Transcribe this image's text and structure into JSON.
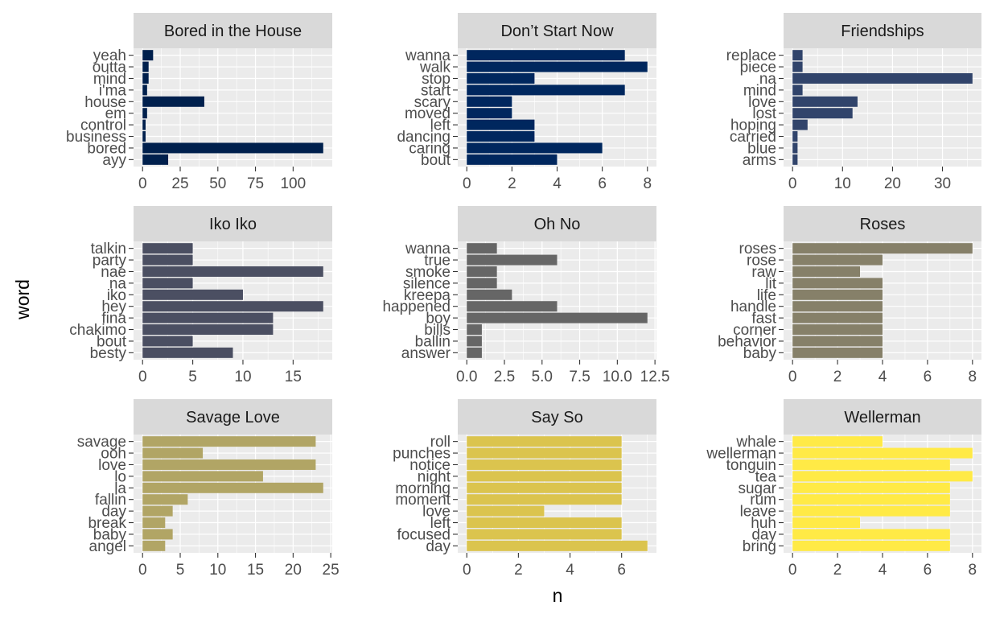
{
  "figure": {
    "xlabel": "n",
    "ylabel": "word",
    "panel_background": "#ebebeb",
    "strip_background": "#d9d9d9",
    "grid_color": "#ffffff"
  },
  "chart_data": [
    {
      "type": "bar",
      "orientation": "horizontal",
      "title": "Bored in the House",
      "color": "#00204d",
      "categories": [
        "ayy",
        "bored",
        "business",
        "control",
        "em",
        "house",
        "i'ma",
        "mind",
        "outta",
        "yeah"
      ],
      "values": [
        17,
        120,
        2,
        2,
        3,
        41,
        3,
        4,
        4,
        7
      ],
      "xlim": [
        0,
        120
      ],
      "xticks": [
        0,
        25,
        50,
        75,
        100
      ]
    },
    {
      "type": "bar",
      "orientation": "horizontal",
      "title": "Don’t Start Now",
      "color": "#00275e",
      "categories": [
        "bout",
        "caring",
        "dancing",
        "left",
        "moved",
        "scary",
        "start",
        "stop",
        "walk",
        "wanna"
      ],
      "values": [
        4,
        6,
        3,
        3,
        2,
        2,
        7,
        3,
        8,
        7
      ],
      "xlim": [
        0,
        8
      ],
      "xticks": [
        0,
        2,
        4,
        6,
        8
      ]
    },
    {
      "type": "bar",
      "orientation": "horizontal",
      "title": "Friendships",
      "color": "#31446b",
      "categories": [
        "arms",
        "blue",
        "carried",
        "hoping",
        "lost",
        "love",
        "mind",
        "na",
        "piece",
        "replace"
      ],
      "values": [
        1,
        1,
        1,
        3,
        12,
        13,
        2,
        36,
        2,
        2
      ],
      "xlim": [
        0,
        36
      ],
      "xticks": [
        0,
        10,
        20,
        30
      ]
    },
    {
      "type": "bar",
      "orientation": "horizontal",
      "title": "Iko Iko",
      "color": "#4b4f62",
      "categories": [
        "besty",
        "bout",
        "chakimo",
        "fina",
        "hey",
        "iko",
        "na",
        "nae",
        "party",
        "talkin"
      ],
      "values": [
        9,
        5,
        13,
        13,
        18,
        10,
        5,
        18,
        5,
        5
      ],
      "xlim": [
        0,
        18
      ],
      "xticks": [
        0,
        5,
        10,
        15
      ]
    },
    {
      "type": "bar",
      "orientation": "horizontal",
      "title": "Oh No",
      "color": "#666666",
      "categories": [
        "answer",
        "ballin",
        "bills",
        "boy",
        "happened",
        "kreepa",
        "silence",
        "smoke",
        "true",
        "wanna"
      ],
      "values": [
        1,
        1,
        1,
        12,
        6,
        3,
        2,
        2,
        6,
        2
      ],
      "xlim": [
        0,
        12
      ],
      "xticks": [
        0,
        2.5,
        5,
        7.5,
        10,
        12.5
      ],
      "xtick_labels": [
        "0.0",
        "2.5",
        "5.0",
        "7.5",
        "10.0",
        "12.5"
      ]
    },
    {
      "type": "bar",
      "orientation": "horizontal",
      "title": "Roses",
      "color": "#868069",
      "categories": [
        "baby",
        "behavior",
        "corner",
        "fast",
        "handle",
        "life",
        "lit",
        "raw",
        "rose",
        "roses"
      ],
      "values": [
        4,
        4,
        4,
        4,
        4,
        4,
        4,
        3,
        4,
        8
      ],
      "xlim": [
        0,
        8
      ],
      "xticks": [
        0,
        2,
        4,
        6,
        8
      ]
    },
    {
      "type": "bar",
      "orientation": "horizontal",
      "title": "Savage Love",
      "color": "#b1a565",
      "categories": [
        "angel",
        "baby",
        "break",
        "day",
        "fallin",
        "la",
        "lo",
        "love",
        "ooh",
        "savage"
      ],
      "values": [
        3,
        4,
        3,
        4,
        6,
        24,
        16,
        23,
        8,
        23
      ],
      "xlim": [
        0,
        24
      ],
      "xticks": [
        0,
        5,
        10,
        15,
        20,
        25
      ]
    },
    {
      "type": "bar",
      "orientation": "horizontal",
      "title": "Say So",
      "color": "#dbc44e",
      "categories": [
        "day",
        "focused",
        "left",
        "love",
        "moment",
        "morning",
        "night",
        "notice",
        "punches",
        "roll"
      ],
      "values": [
        7,
        6,
        6,
        3,
        6,
        6,
        6,
        6,
        6,
        6
      ],
      "xlim": [
        0,
        7
      ],
      "xticks": [
        0,
        2,
        4,
        6
      ]
    },
    {
      "type": "bar",
      "orientation": "horizontal",
      "title": "Wellerman",
      "color": "#ffea46",
      "categories": [
        "bring",
        "day",
        "huh",
        "leave",
        "rum",
        "sugar",
        "tea",
        "tonguin",
        "wellerman",
        "whale"
      ],
      "values": [
        7,
        7,
        3,
        7,
        7,
        7,
        8,
        7,
        8,
        4
      ],
      "xlim": [
        0,
        8
      ],
      "xticks": [
        0,
        2,
        4,
        6,
        8
      ]
    }
  ]
}
